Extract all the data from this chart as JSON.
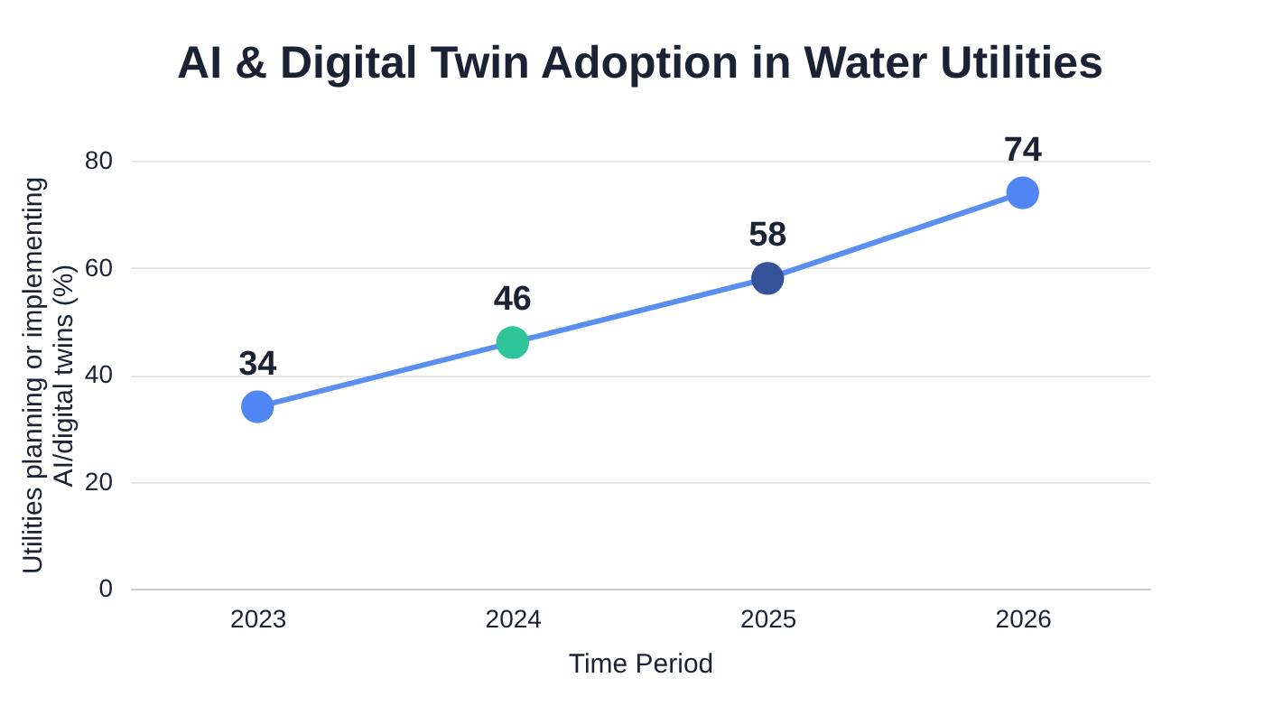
{
  "chart_data": {
    "type": "line",
    "title": "AI & Digital Twin Adoption in Water Utilities",
    "xlabel": "Time Period",
    "ylabel": "Utilities planning or implementing AI/digital twins (%)",
    "categories": [
      "2023",
      "2024",
      "2025",
      "2026"
    ],
    "series": [
      {
        "color": "#5a8ff0",
        "colors": [
          "#5087f5",
          "#2fc59a",
          "#34539a",
          "#5087f5"
        ],
        "values": [
          34,
          46,
          58,
          74
        ]
      }
    ],
    "ylim": [
      0,
      80
    ],
    "yticks": [
      0,
      20,
      40,
      60,
      80
    ],
    "grid": "y",
    "data_labels": true,
    "marker": "circle",
    "line_style": "solid"
  }
}
